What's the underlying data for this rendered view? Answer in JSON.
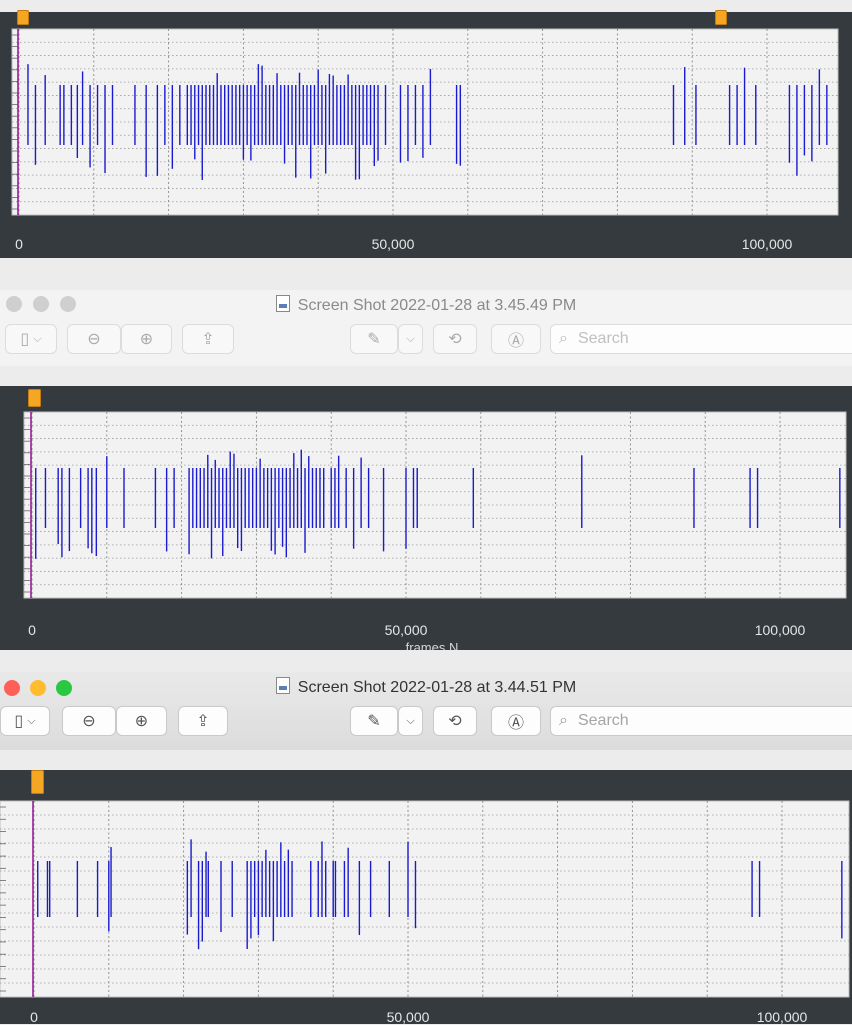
{
  "panel1": {
    "x_ticks": [
      "0",
      "50,000",
      "100,000"
    ],
    "x_range": [
      0,
      109000
    ],
    "cursor_x": 0
  },
  "window2": {
    "title": "Screen Shot 2022-01-28 at 3.45.49 PM",
    "active": false,
    "search_placeholder": "Search",
    "icons": [
      "sidebar-icon",
      "chevron-down-icon",
      "zoom-out-icon",
      "zoom-in-icon",
      "share-icon",
      "pen-icon",
      "chevron-down-icon",
      "rotate-icon",
      "markup-icon",
      "search-icon"
    ],
    "plot": {
      "x_ticks": [
        "0",
        "50,000",
        "100,000"
      ],
      "x_label": "frames  N",
      "x_range": [
        0,
        109000
      ]
    }
  },
  "window3": {
    "title": "Screen Shot 2022-01-28 at 3.44.51 PM",
    "active": true,
    "search_placeholder": "Search",
    "traffic_light_colors": [
      "#fe5f57",
      "#febc2e",
      "#28c840"
    ],
    "plot": {
      "x_ticks": [
        "0",
        "50,000",
        "100,000"
      ],
      "x_range": [
        0,
        109000
      ]
    }
  },
  "chart_data": [
    {
      "type": "scatter",
      "description_values": "event spikes along frames axis",
      "x_range": [
        0,
        109000
      ],
      "spikes_x": [
        1200,
        2200,
        3500,
        5500,
        6000,
        7000,
        7800,
        8500,
        9500,
        10500,
        11500,
        12500,
        15500,
        17000,
        18500,
        19500,
        20500,
        21500,
        22500,
        23000,
        23500,
        24000,
        24500,
        25000,
        25500,
        26000,
        26500,
        27000,
        27500,
        28000,
        28500,
        29000,
        29500,
        30000,
        30500,
        31000,
        31500,
        32000,
        32500,
        33000,
        33500,
        34000,
        34500,
        35000,
        35500,
        36000,
        36500,
        37000,
        37500,
        38000,
        38500,
        39000,
        39500,
        40000,
        40500,
        41000,
        41500,
        42000,
        42500,
        43000,
        43500,
        44000,
        44500,
        45000,
        45500,
        46000,
        46500,
        47000,
        47500,
        48000,
        49000,
        51000,
        52000,
        53000,
        54000,
        55000,
        58500,
        59000,
        87500,
        89000,
        90500,
        95000,
        96000,
        97000,
        98500,
        103000,
        104000,
        105000,
        106000,
        107000,
        108000
      ],
      "grid": true
    },
    {
      "type": "scatter",
      "x_range": [
        0,
        109000
      ],
      "spikes_x": [
        500,
        1800,
        3500,
        4000,
        5000,
        6500,
        7500,
        8000,
        8600,
        10000,
        12300,
        16500,
        18000,
        19000,
        21000,
        21500,
        22000,
        22500,
        23000,
        23500,
        24000,
        24500,
        25000,
        25500,
        26000,
        26500,
        27000,
        27500,
        28000,
        28500,
        29000,
        29500,
        30000,
        30500,
        31000,
        31500,
        32000,
        32500,
        33000,
        33500,
        34000,
        34500,
        35000,
        35500,
        36000,
        36500,
        37000,
        37500,
        38000,
        38500,
        39000,
        40000,
        40500,
        41000,
        42000,
        43000,
        44000,
        45000,
        47000,
        50000,
        51000,
        51500,
        59000,
        73500,
        88500,
        96000,
        97000,
        108000
      ],
      "grid": true
    },
    {
      "type": "scatter",
      "x_range": [
        0,
        109000
      ],
      "spikes_x": [
        500,
        1800,
        2100,
        5800,
        8500,
        10000,
        10300,
        20500,
        21000,
        22000,
        22500,
        23000,
        23300,
        25000,
        26500,
        28500,
        29000,
        29500,
        30000,
        30500,
        31000,
        31500,
        32000,
        32500,
        33000,
        33500,
        34000,
        34500,
        37000,
        38000,
        38500,
        39000,
        40000,
        40300,
        41500,
        42000,
        43500,
        45000,
        47500,
        50000,
        51000,
        96000,
        97000,
        108000
      ],
      "grid": true
    }
  ]
}
